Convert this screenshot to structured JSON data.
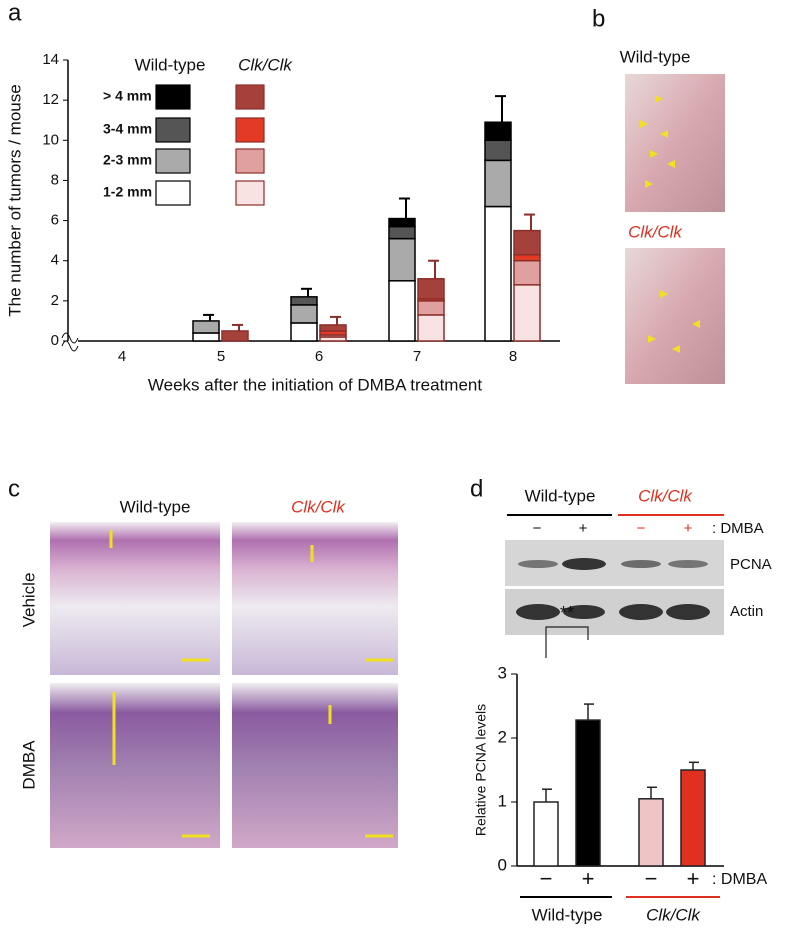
{
  "panel_labels": [
    "a",
    "b",
    "c",
    "d"
  ],
  "chart_data": [
    {
      "type": "stacked_bar",
      "ylabel": "The number of tumors / mouse",
      "xlabel": "Weeks after the initiation of DMBA treatment",
      "categories": [
        "4",
        "5",
        "6",
        "7",
        "8"
      ],
      "legend_rows": [
        "> 4 mm",
        "3-4 mm",
        "2-3 mm",
        "1-2 mm"
      ],
      "groups": [
        {
          "name": "Wild-type",
          "color": "#000000",
          "edge": "#000000",
          "series": [
            {
              "color": "#000000",
              "values": [
                0,
                0,
                0,
                0.4,
                0.9
              ]
            },
            {
              "color": "#555555",
              "values": [
                0,
                0,
                0.4,
                0.6,
                1.0
              ]
            },
            {
              "color": "#aaaaaa",
              "values": [
                0,
                0.6,
                0.9,
                2.1,
                2.3
              ]
            },
            {
              "color": "#ffffff",
              "values": [
                0,
                0.4,
                0.9,
                3.0,
                6.7
              ]
            }
          ],
          "errors": [
            0,
            0.3,
            0.4,
            1.0,
            1.3
          ]
        },
        {
          "name": "Clk/Clk",
          "color": "#e03020",
          "edge": "#8b2f2a",
          "series": [
            {
              "color": "#a5403b",
              "values": [
                0,
                0.5,
                0.3,
                1.0,
                1.2
              ]
            },
            {
              "color": "#e23a24",
              "values": [
                0,
                0,
                0.2,
                0.1,
                0.3
              ]
            },
            {
              "color": "#e0a0a0",
              "values": [
                0,
                0,
                0.1,
                0.7,
                1.2
              ]
            },
            {
              "color": "#f8e2e2",
              "values": [
                0,
                0,
                0.2,
                1.3,
                2.8
              ]
            }
          ],
          "errors": [
            0,
            0.3,
            0.4,
            0.9,
            0.8
          ]
        }
      ],
      "ylim": [
        0,
        14
      ],
      "yticks": [
        0,
        2,
        4,
        6,
        8,
        10,
        12,
        14
      ]
    },
    {
      "type": "bar",
      "ylabel": "Relative PCNA levels",
      "categories": [
        "−",
        "+",
        "−",
        "+"
      ],
      "values": [
        1.0,
        2.28,
        1.05,
        1.5
      ],
      "errors": [
        0.2,
        0.25,
        0.18,
        0.12
      ],
      "colors": [
        "#ffffff",
        "#000000",
        "#f0c4c4",
        "#e03020"
      ],
      "label_colors": [
        "#000000",
        "#000000",
        "#e03020",
        "#e03020"
      ],
      "treatment": ": DMBA",
      "groups": [
        "Wild-type",
        "Clk/Clk"
      ],
      "annotation": "**",
      "ylim": [
        0,
        3
      ],
      "yticks": [
        0,
        1,
        2,
        3
      ]
    }
  ],
  "photos": {
    "rows": [
      "Wild-type",
      "Clk/Clk"
    ]
  },
  "histology": {
    "columns": [
      "Wild-type",
      "Clk/Clk"
    ],
    "rows": [
      "Vehicle",
      "DMBA"
    ]
  },
  "blot": {
    "groups": [
      "Wild-type",
      "Clk/Clk"
    ],
    "conditions": [
      "−",
      "+",
      "−",
      "+"
    ],
    "treatment": ": DMBA",
    "bands": [
      "PCNA",
      "Actin"
    ]
  }
}
